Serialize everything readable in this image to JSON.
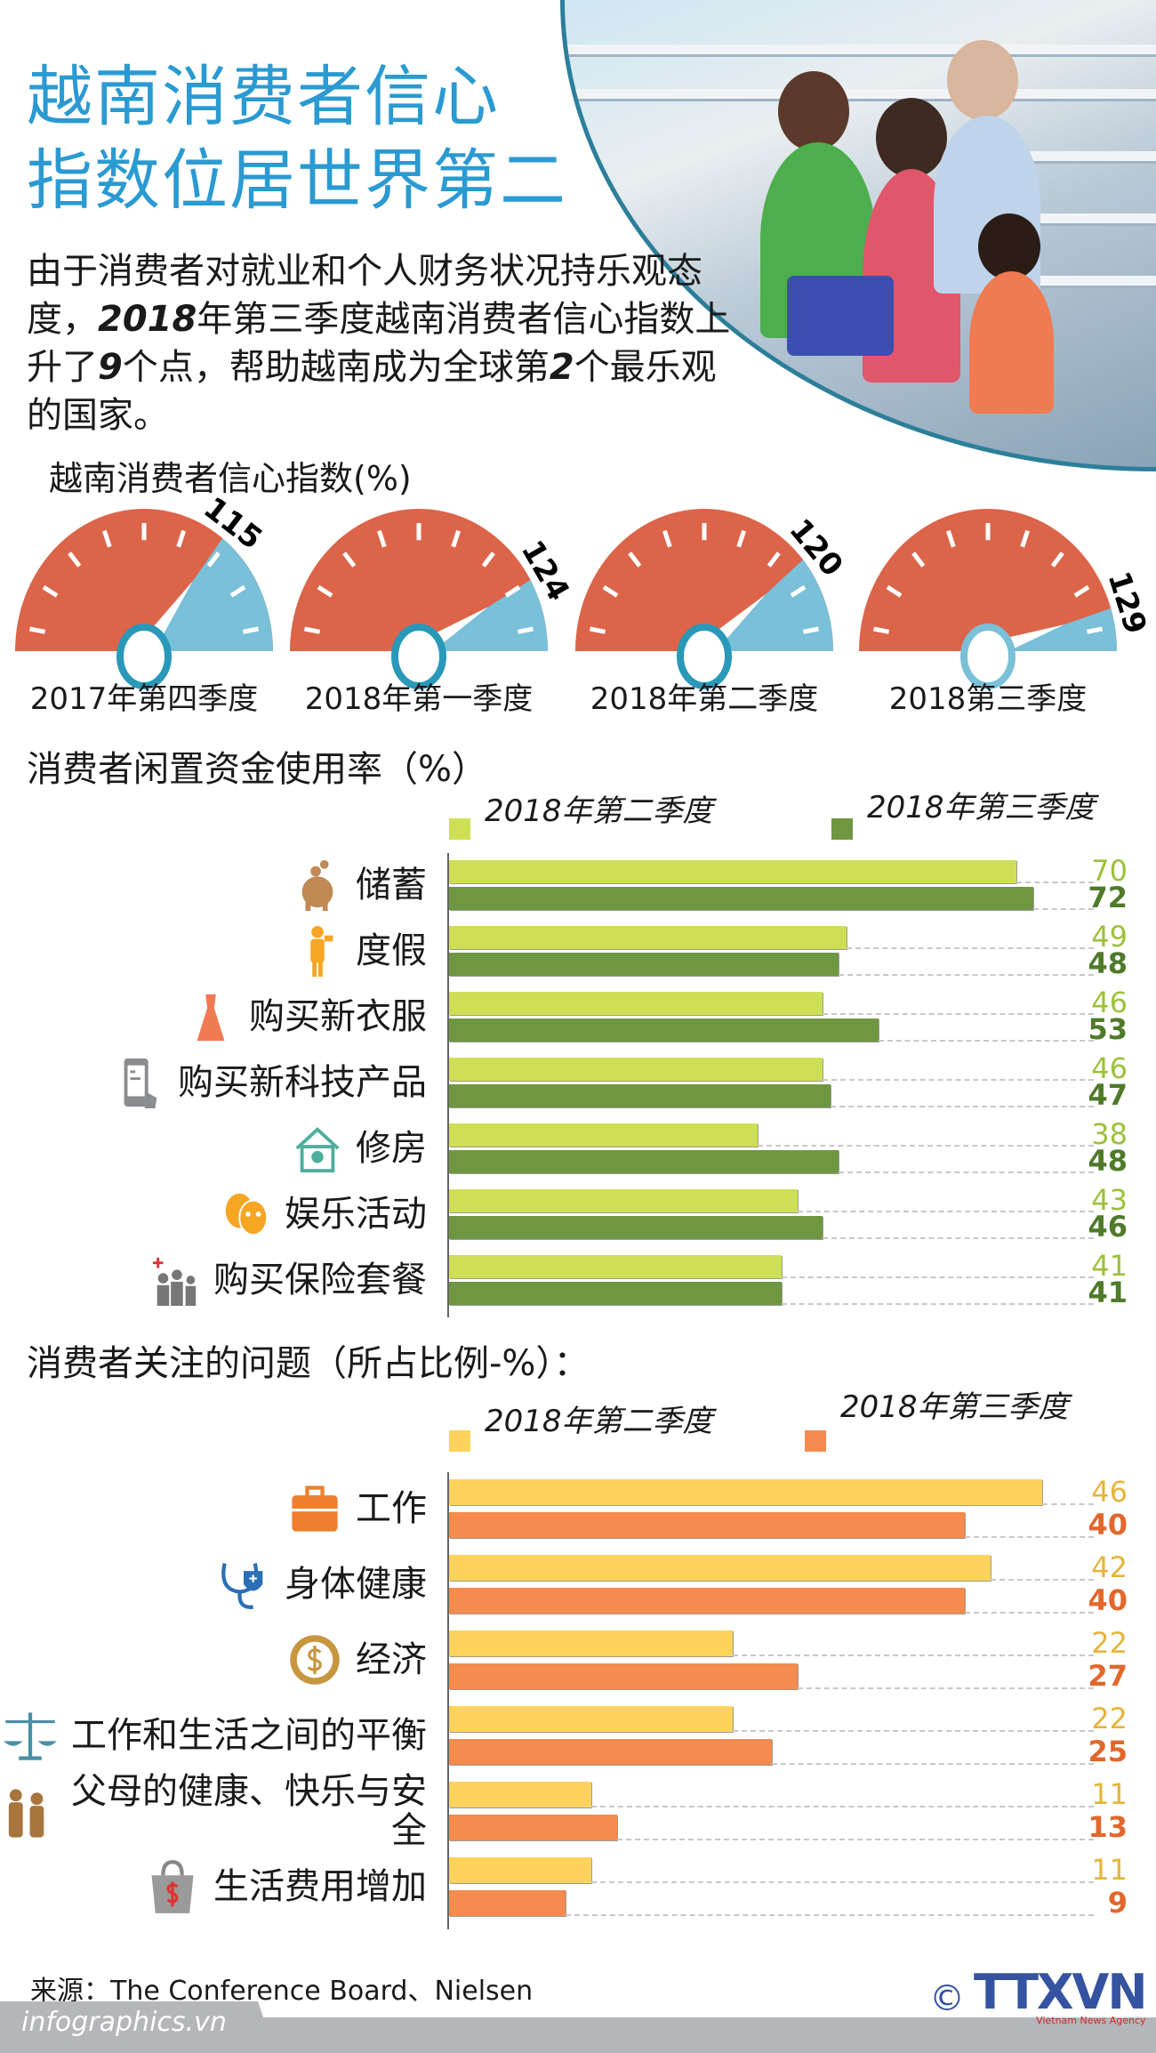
{
  "header": {
    "title_lines": [
      "越南消费者信心",
      "指数位居世界第二"
    ],
    "intro_parts": [
      "由于消费者对就业和个人财务状况持乐观态度，",
      "2018",
      "年第三季度越南消费者信心指数上升了",
      "9",
      "个点，帮助越南成为全球第",
      "2",
      "个最乐观的国家。"
    ]
  },
  "gauges": {
    "title": "越南消费者信心指数(%)",
    "items": [
      {
        "label": "2017年第四季度",
        "value": 115
      },
      {
        "label": "2018年第一季度",
        "value": 124
      },
      {
        "label": "2018年第二季度",
        "value": 120
      },
      {
        "label": "2018第三季度",
        "value": 129
      }
    ],
    "colors": {
      "red": "#dc6449",
      "blue": "#79c0d8",
      "ring": "#2a98b9"
    }
  },
  "chart_data": [
    {
      "type": "bar",
      "title": "消费者闲置资金使用率（%）",
      "orientation": "horizontal",
      "categories": [
        "储蓄",
        "度假",
        "购买新衣服",
        "购买新科技产品",
        "修房",
        "娱乐活动",
        "购买保险套餐"
      ],
      "icons": [
        "piggy-bank-icon",
        "traveler-icon",
        "dress-icon",
        "smartphone-icon",
        "house-icon",
        "theater-masks-icon",
        "insurance-family-icon"
      ],
      "series": [
        {
          "name": "2018年第二季度",
          "values": [
            70,
            49,
            46,
            46,
            38,
            43,
            41
          ],
          "color": "#cfdf55",
          "text_color": "#9cc13a"
        },
        {
          "name": "2018年第三季度",
          "values": [
            72,
            48,
            53,
            47,
            48,
            46,
            41
          ],
          "color": "#6f9742",
          "text_color": "#4f7a2a"
        }
      ],
      "legend": "top"
    },
    {
      "type": "bar",
      "title": "消费者关注的问题（所占比例-%）：",
      "orientation": "horizontal",
      "categories": [
        "工作",
        "身体健康",
        "经济",
        "工作和生活之间的平衡",
        "父母的健康、快乐与安全",
        "生活费用增加"
      ],
      "icons": [
        "briefcase-icon",
        "stethoscope-icon",
        "dollar-coin-icon",
        "balance-scale-icon",
        "elderly-couple-icon",
        "shopping-bag-dollar-icon"
      ],
      "series": [
        {
          "name": "2018年第二季度",
          "values": [
            46,
            42,
            22,
            22,
            11,
            11
          ],
          "color": "#fdd35c",
          "text_color": "#e6b43a"
        },
        {
          "name": "2018年第三季度",
          "values": [
            40,
            40,
            27,
            25,
            13,
            9
          ],
          "color": "#f58b4e",
          "text_color": "#e2672c"
        }
      ],
      "legend": "top"
    }
  ],
  "footer": {
    "source": "来源：The Conference Board、Nielsen",
    "site": "infographics.vn",
    "copyright": "©",
    "logo_text": "TTXVN",
    "logo_sub": "Vietnam News Agency"
  }
}
